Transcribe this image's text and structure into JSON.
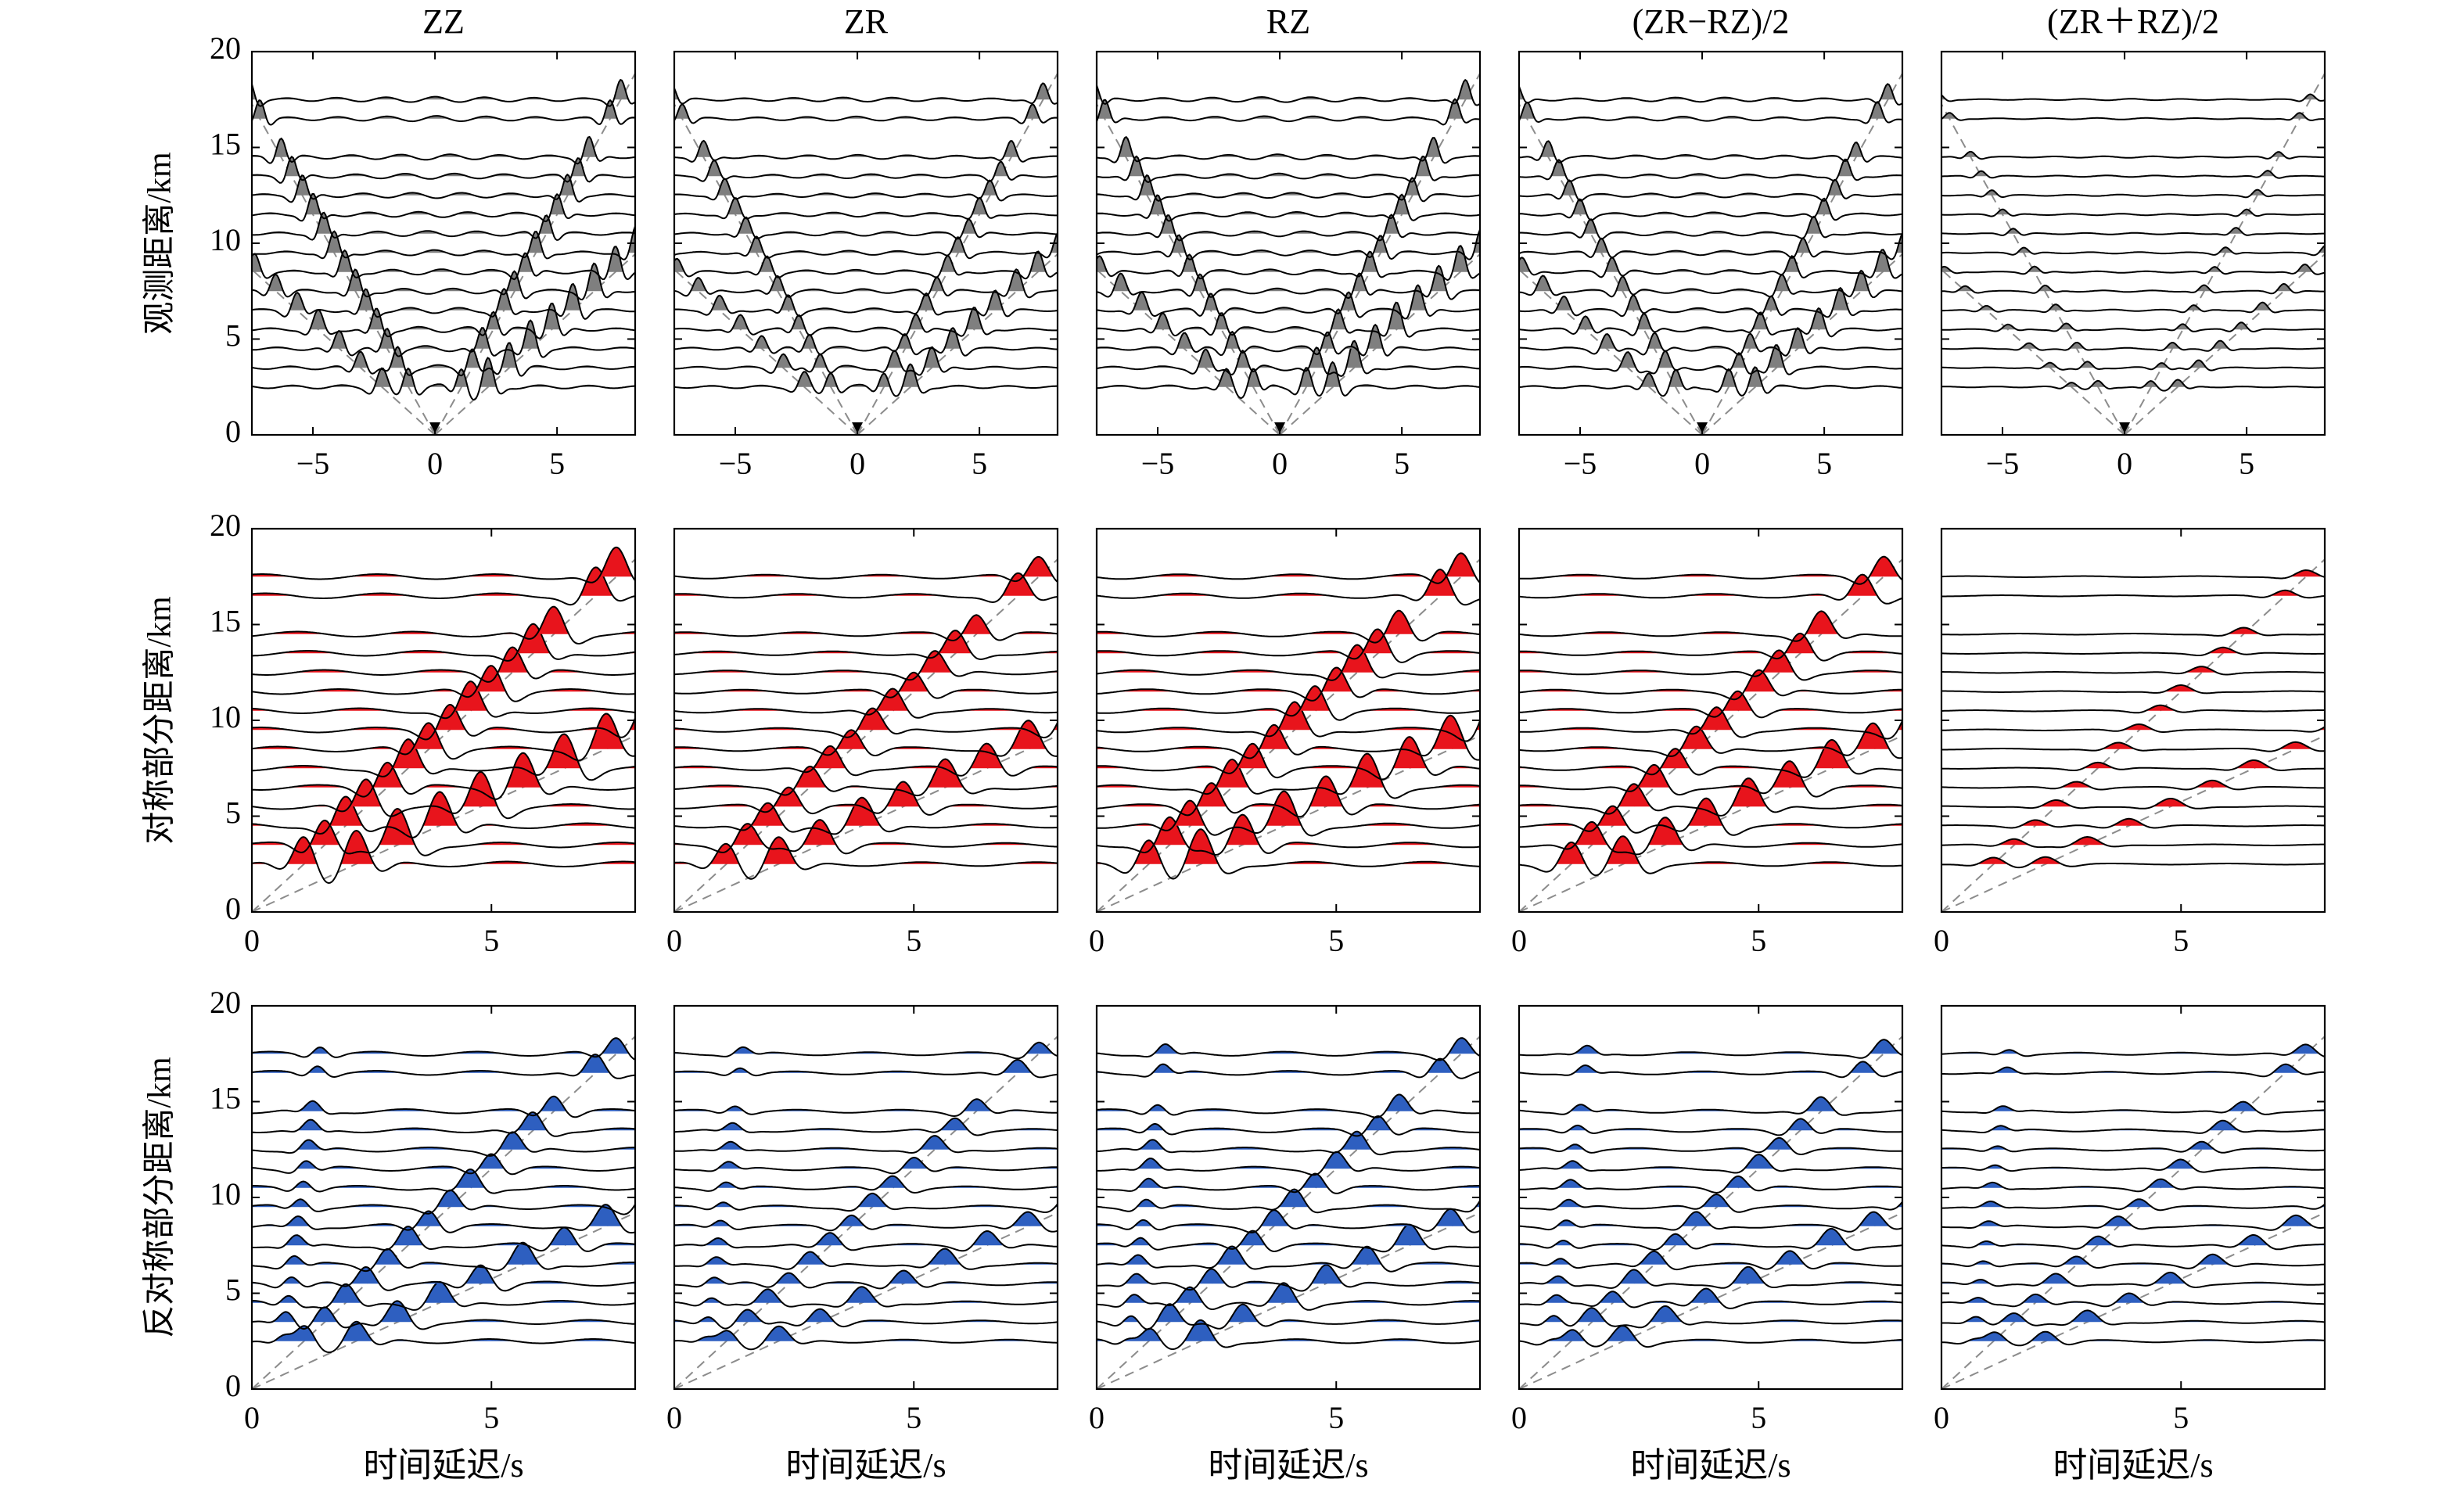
{
  "figure": {
    "columns": [
      "ZZ",
      "ZR",
      "RZ",
      "(ZR−RZ)/2",
      "(ZR＋RZ)/2"
    ],
    "row_ylabels": [
      "观测距离/km",
      "对称部分距离/km",
      "反对称部分距离/km"
    ],
    "xlabel": "时间延迟/s",
    "colors": {
      "observed": "#7f7f7f",
      "symmetric": "#e8141c",
      "antisymmetric": "#2e5fc0",
      "trace": "#000000",
      "guide": "#8c8c8c"
    }
  },
  "chart_data": [
    {
      "type": "wiggle",
      "row": "observed",
      "ylabel": "观测距离/km",
      "ylim": [
        0,
        20
      ],
      "yticks": [
        0,
        5,
        10,
        15,
        20
      ],
      "xlim": [
        -7.5,
        8.2
      ],
      "xticks": [
        -5,
        0,
        5
      ],
      "xticklabels": [
        "−5",
        "0",
        "5"
      ],
      "distances": [
        2.5,
        3.5,
        4.5,
        5.5,
        6.5,
        7.5,
        8.5,
        9.5,
        10.5,
        11.5,
        12.5,
        13.5,
        14.5,
        16.5,
        17.5
      ],
      "guide_slopes": [
        2.3,
        1.15
      ],
      "panels": [
        {
          "name": "ZZ",
          "amp": 1.0
        },
        {
          "name": "ZR",
          "amp": 0.78
        },
        {
          "name": "RZ",
          "amp": 0.95
        },
        {
          "name": "(ZR−RZ)/2",
          "amp": 0.8
        },
        {
          "name": "(ZR＋RZ)/2",
          "amp": 0.28
        }
      ]
    },
    {
      "type": "wiggle",
      "row": "symmetric",
      "ylabel": "对称部分距离/km",
      "ylim": [
        0,
        20
      ],
      "yticks": [
        0,
        5,
        10,
        15,
        20
      ],
      "xlim": [
        0,
        8
      ],
      "xticks": [
        0,
        5
      ],
      "xticklabels": [
        "0",
        "5"
      ],
      "distances": [
        2.5,
        3.5,
        4.5,
        5.5,
        6.5,
        7.5,
        8.5,
        9.5,
        10.5,
        11.5,
        12.5,
        13.5,
        14.5,
        16.5,
        17.5
      ],
      "guide_slopes": [
        2.3,
        1.15
      ],
      "panels": [
        {
          "name": "ZZ",
          "amp": 1.0
        },
        {
          "name": "ZR",
          "amp": 0.78
        },
        {
          "name": "RZ",
          "amp": 0.95
        },
        {
          "name": "(ZR−RZ)/2",
          "amp": 0.8
        },
        {
          "name": "(ZR＋RZ)/2",
          "amp": 0.22
        }
      ]
    },
    {
      "type": "wiggle",
      "row": "antisymmetric",
      "ylabel": "反对称部分距离/km",
      "ylim": [
        0,
        20
      ],
      "yticks": [
        0,
        5,
        10,
        15,
        20
      ],
      "xlim": [
        0,
        8
      ],
      "xticks": [
        0,
        5
      ],
      "xticklabels": [
        "0",
        "5"
      ],
      "xlabel": "时间延迟/s",
      "distances": [
        2.5,
        3.5,
        4.5,
        5.5,
        6.5,
        7.5,
        8.5,
        9.5,
        10.5,
        11.5,
        12.5,
        13.5,
        14.5,
        16.5,
        17.5
      ],
      "guide_slopes": [
        2.3,
        1.15
      ],
      "panels": [
        {
          "name": "ZZ",
          "amp": 0.85
        },
        {
          "name": "ZR",
          "amp": 0.62
        },
        {
          "name": "RZ",
          "amp": 0.82
        },
        {
          "name": "(ZR−RZ)/2",
          "amp": 0.65
        },
        {
          "name": "(ZR＋RZ)/2",
          "amp": 0.45
        }
      ]
    }
  ]
}
